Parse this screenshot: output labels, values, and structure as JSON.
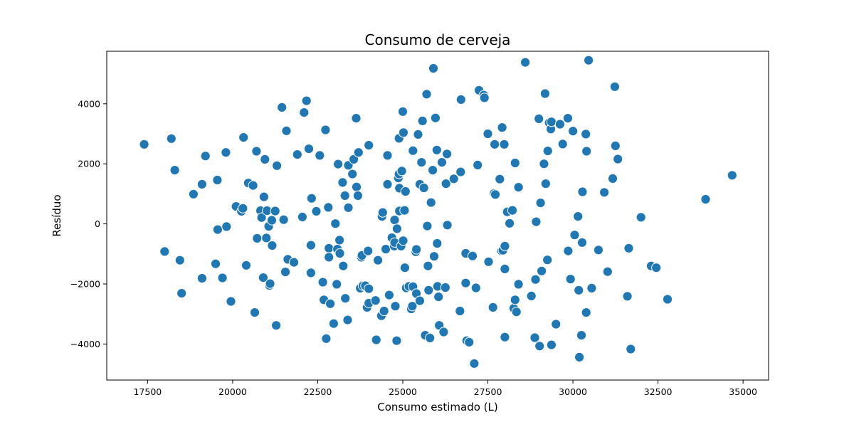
{
  "chart_data": {
    "type": "scatter",
    "title": "Consumo de cerveja",
    "xlabel": "Consumo estimado (L)",
    "ylabel": "Resíduo",
    "xlim": [
      16300,
      35750
    ],
    "ylim": [
      -5200,
      5750
    ],
    "x_ticks": [
      17500,
      20000,
      22500,
      25000,
      27500,
      30000,
      32500,
      35000
    ],
    "x_tick_labels": [
      "17500",
      "20000",
      "22500",
      "25000",
      "27500",
      "30000",
      "32500",
      "35000"
    ],
    "y_ticks": [
      -4000,
      -2000,
      0,
      2000,
      4000
    ],
    "y_tick_labels": [
      "−4000",
      "−2000",
      "0",
      "2000",
      "4000"
    ],
    "grid": false,
    "legend": "none",
    "marker_color": "#1f77b4",
    "marker_edge_color": "#ffffff",
    "points": [
      [
        17400,
        2650
      ],
      [
        18000,
        -920
      ],
      [
        18200,
        2840
      ],
      [
        18300,
        1790
      ],
      [
        18450,
        -1210
      ],
      [
        18500,
        -2310
      ],
      [
        18850,
        990
      ],
      [
        19100,
        1320
      ],
      [
        19100,
        -1810
      ],
      [
        19200,
        2260
      ],
      [
        19500,
        -1330
      ],
      [
        19550,
        1460
      ],
      [
        19560,
        -190
      ],
      [
        19700,
        -1800
      ],
      [
        19800,
        2380
      ],
      [
        19820,
        -90
      ],
      [
        19950,
        -2580
      ],
      [
        20100,
        580
      ],
      [
        20260,
        420
      ],
      [
        20300,
        520
      ],
      [
        20320,
        2880
      ],
      [
        20400,
        -1380
      ],
      [
        20460,
        1360
      ],
      [
        20600,
        1280
      ],
      [
        20650,
        -2950
      ],
      [
        20700,
        2420
      ],
      [
        20720,
        -480
      ],
      [
        20820,
        440
      ],
      [
        20850,
        210
      ],
      [
        20900,
        -1790
      ],
      [
        20920,
        900
      ],
      [
        20950,
        2150
      ],
      [
        20990,
        -470
      ],
      [
        21010,
        440
      ],
      [
        21060,
        -80
      ],
      [
        21080,
        -2050
      ],
      [
        21100,
        -1990
      ],
      [
        21150,
        120
      ],
      [
        21160,
        -720
      ],
      [
        21250,
        430
      ],
      [
        21280,
        -3380
      ],
      [
        21300,
        1940
      ],
      [
        21450,
        3880
      ],
      [
        21500,
        140
      ],
      [
        21550,
        -1600
      ],
      [
        21580,
        3100
      ],
      [
        21620,
        -1180
      ],
      [
        21800,
        -1280
      ],
      [
        21900,
        2310
      ],
      [
        22050,
        230
      ],
      [
        22100,
        3710
      ],
      [
        22170,
        4100
      ],
      [
        22240,
        2500
      ],
      [
        22300,
        -710
      ],
      [
        22320,
        850
      ],
      [
        22300,
        -1630
      ],
      [
        22460,
        420
      ],
      [
        22560,
        2280
      ],
      [
        22650,
        -1940
      ],
      [
        22680,
        -2530
      ],
      [
        22730,
        3130
      ],
      [
        22750,
        -3820
      ],
      [
        22810,
        550
      ],
      [
        22830,
        -810
      ],
      [
        22830,
        -1110
      ],
      [
        22870,
        -2660
      ],
      [
        22970,
        -3320
      ],
      [
        23020,
        10
      ],
      [
        23060,
        -2010
      ],
      [
        23080,
        -840
      ],
      [
        23100,
        1990
      ],
      [
        23140,
        -540
      ],
      [
        23150,
        -980
      ],
      [
        23230,
        1380
      ],
      [
        23250,
        -1400
      ],
      [
        23300,
        940
      ],
      [
        23310,
        -2480
      ],
      [
        23380,
        -3200
      ],
      [
        23400,
        1950
      ],
      [
        23400,
        540
      ],
      [
        23520,
        1660
      ],
      [
        23560,
        2150
      ],
      [
        23630,
        3520
      ],
      [
        23640,
        1230
      ],
      [
        23680,
        940
      ],
      [
        23700,
        2380
      ],
      [
        23750,
        -2140
      ],
      [
        23780,
        -1110
      ],
      [
        23800,
        -1050
      ],
      [
        23830,
        -2060
      ],
      [
        23900,
        -2060
      ],
      [
        23950,
        -2780
      ],
      [
        23980,
        -900
      ],
      [
        24000,
        2620
      ],
      [
        24000,
        -2160
      ],
      [
        24000,
        -2640
      ],
      [
        24200,
        -2550
      ],
      [
        24220,
        -3860
      ],
      [
        24270,
        -1210
      ],
      [
        24370,
        -3060
      ],
      [
        24390,
        250
      ],
      [
        24410,
        380
      ],
      [
        24450,
        -2900
      ],
      [
        24500,
        -840
      ],
      [
        24550,
        1320
      ],
      [
        24550,
        2280
      ],
      [
        24600,
        -2370
      ],
      [
        24680,
        -460
      ],
      [
        24750,
        -740
      ],
      [
        24760,
        -620
      ],
      [
        24760,
        130
      ],
      [
        24780,
        -2740
      ],
      [
        24820,
        -3890
      ],
      [
        24830,
        -160
      ],
      [
        24870,
        1530
      ],
      [
        24890,
        2850
      ],
      [
        24890,
        1660
      ],
      [
        24900,
        1190
      ],
      [
        24900,
        430
      ],
      [
        24950,
        -740
      ],
      [
        24970,
        1760
      ],
      [
        25000,
        3740
      ],
      [
        25010,
        -560
      ],
      [
        25020,
        3040
      ],
      [
        25050,
        450
      ],
      [
        25060,
        -1460
      ],
      [
        25080,
        1080
      ],
      [
        25100,
        -2130
      ],
      [
        25180,
        -2080
      ],
      [
        25250,
        -2830
      ],
      [
        25280,
        -2740
      ],
      [
        25300,
        -2090
      ],
      [
        25300,
        2440
      ],
      [
        25380,
        -930
      ],
      [
        25400,
        -850
      ],
      [
        25400,
        -2320
      ],
      [
        25450,
        2980
      ],
      [
        25500,
        -2560
      ],
      [
        25500,
        1320
      ],
      [
        25550,
        2050
      ],
      [
        25580,
        3430
      ],
      [
        25620,
        1200
      ],
      [
        25660,
        -3710
      ],
      [
        25700,
        4320
      ],
      [
        25720,
        -70
      ],
      [
        25740,
        -1400
      ],
      [
        25760,
        -2210
      ],
      [
        25800,
        -3800
      ],
      [
        25830,
        710
      ],
      [
        25880,
        1790
      ],
      [
        25900,
        5180
      ],
      [
        25920,
        -1080
      ],
      [
        25960,
        3530
      ],
      [
        26000,
        2460
      ],
      [
        26010,
        -650
      ],
      [
        26020,
        -2080
      ],
      [
        26050,
        -2430
      ],
      [
        26070,
        -3380
      ],
      [
        26150,
        2050
      ],
      [
        26200,
        -3600
      ],
      [
        26250,
        -2120
      ],
      [
        26270,
        1340
      ],
      [
        26300,
        2330
      ],
      [
        26310,
        -40
      ],
      [
        26500,
        1500
      ],
      [
        26680,
        -2900
      ],
      [
        26700,
        1730
      ],
      [
        26710,
        4140
      ],
      [
        26850,
        -980
      ],
      [
        26850,
        -1970
      ],
      [
        26880,
        -3890
      ],
      [
        26950,
        -3940
      ],
      [
        27050,
        -1070
      ],
      [
        27100,
        -4650
      ],
      [
        27150,
        -2130
      ],
      [
        27200,
        1960
      ],
      [
        27240,
        4450
      ],
      [
        27380,
        4290
      ],
      [
        27400,
        4200
      ],
      [
        27500,
        3000
      ],
      [
        27520,
        -1260
      ],
      [
        27650,
        -2780
      ],
      [
        27680,
        1010
      ],
      [
        27700,
        2650
      ],
      [
        27720,
        980
      ],
      [
        27850,
        1490
      ],
      [
        27900,
        -900
      ],
      [
        27920,
        3210
      ],
      [
        27940,
        -880
      ],
      [
        27980,
        2650
      ],
      [
        28000,
        -1500
      ],
      [
        28000,
        -740
      ],
      [
        28000,
        -3770
      ],
      [
        28070,
        400
      ],
      [
        28140,
        20
      ],
      [
        28220,
        450
      ],
      [
        28260,
        -2810
      ],
      [
        28300,
        -2530
      ],
      [
        28300,
        2030
      ],
      [
        28340,
        -2930
      ],
      [
        28400,
        1220
      ],
      [
        28400,
        -2010
      ],
      [
        28600,
        5380
      ],
      [
        28780,
        -2400
      ],
      [
        28880,
        -3790
      ],
      [
        28900,
        -1850
      ],
      [
        28920,
        70
      ],
      [
        29000,
        3500
      ],
      [
        29020,
        -4070
      ],
      [
        29050,
        700
      ],
      [
        29080,
        -1570
      ],
      [
        29150,
        2000
      ],
      [
        29180,
        4340
      ],
      [
        29200,
        1340
      ],
      [
        29250,
        -1200
      ],
      [
        29260,
        2430
      ],
      [
        29300,
        3370
      ],
      [
        29350,
        3160
      ],
      [
        29370,
        3400
      ],
      [
        29370,
        -4030
      ],
      [
        29500,
        -3340
      ],
      [
        29620,
        3320
      ],
      [
        29700,
        2660
      ],
      [
        29850,
        3520
      ],
      [
        29860,
        -900
      ],
      [
        29930,
        -1840
      ],
      [
        30000,
        3090
      ],
      [
        30050,
        -370
      ],
      [
        30150,
        250
      ],
      [
        30170,
        -2210
      ],
      [
        30190,
        -4440
      ],
      [
        30250,
        -3710
      ],
      [
        30270,
        -620
      ],
      [
        30280,
        1070
      ],
      [
        30380,
        2990
      ],
      [
        30390,
        -2950
      ],
      [
        30400,
        2420
      ],
      [
        30460,
        5450
      ],
      [
        30550,
        -2140
      ],
      [
        30750,
        -870
      ],
      [
        30920,
        1050
      ],
      [
        31020,
        -1590
      ],
      [
        31170,
        1510
      ],
      [
        31230,
        4570
      ],
      [
        31250,
        2600
      ],
      [
        31320,
        2160
      ],
      [
        31600,
        -2410
      ],
      [
        31640,
        -810
      ],
      [
        31700,
        -4170
      ],
      [
        32000,
        220
      ],
      [
        32300,
        -1400
      ],
      [
        32450,
        -1460
      ],
      [
        32780,
        -2510
      ],
      [
        33900,
        820
      ],
      [
        34680,
        1620
      ]
    ]
  }
}
